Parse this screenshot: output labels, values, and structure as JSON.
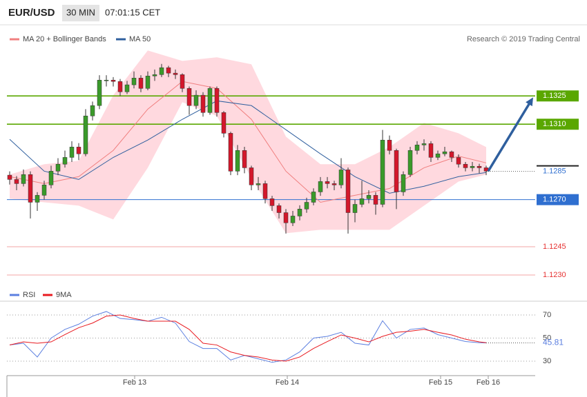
{
  "header": {
    "symbol": "EUR/USD",
    "timeframe": "30 MIN",
    "time": "07:01:15 CET"
  },
  "chart_data": [
    {
      "type": "candlestick",
      "credit": "Research © 2019 Trading Central",
      "up_color": "#3a9a2a",
      "down_color": "#d3172b",
      "xlim": [
        -1.4,
        75.6
      ],
      "ylim": [
        1.1226,
        1.1362
      ],
      "open": [
        1.1283,
        1.12807,
        1.12785,
        1.12833,
        1.12686,
        1.12723,
        1.12778,
        1.12851,
        1.12888,
        1.12924,
        1.12979,
        1.12943,
        1.13144,
        1.13199,
        1.13334,
        1.13334,
        1.13327,
        1.13272,
        1.13309,
        1.13345,
        1.1329,
        1.13356,
        1.13363,
        1.134,
        1.13371,
        1.13363,
        1.1329,
        1.13199,
        1.13254,
        1.13162,
        1.1329,
        1.13162,
        1.13052,
        1.12851,
        1.12961,
        1.12869,
        1.12778,
        1.12785,
        1.12705,
        1.12668,
        1.12631,
        1.12577,
        1.12613,
        1.1265,
        1.12686,
        1.12741,
        1.12796,
        1.12785,
        1.12778,
        1.12858,
        1.12631,
        1.12675,
        1.12705,
        1.12723,
        1.12675,
        1.13016,
        1.12961,
        1.12741,
        1.12833,
        1.12961,
        1.1299,
        1.12997,
        1.12924,
        1.12943,
        1.12954,
        1.12924,
        1.12888,
        1.12869,
        1.12877,
        1.12869
      ],
      "high": [
        1.1285,
        1.12825,
        1.1286,
        1.1285,
        1.1274,
        1.128,
        1.1288,
        1.1292,
        1.1296,
        1.1301,
        1.13,
        1.1318,
        1.1322,
        1.1336,
        1.1336,
        1.1335,
        1.1334,
        1.1333,
        1.1338,
        1.1336,
        1.1338,
        1.1339,
        1.1342,
        1.1341,
        1.1339,
        1.1337,
        1.133,
        1.1328,
        1.1327,
        1.133,
        1.133,
        1.1317,
        1.1306,
        1.1299,
        1.1298,
        1.1288,
        1.1282,
        1.128,
        1.1272,
        1.1268,
        1.1265,
        1.1264,
        1.1267,
        1.1271,
        1.1276,
        1.1282,
        1.1282,
        1.128,
        1.1292,
        1.1287,
        1.127,
        1.128,
        1.1275,
        1.1274,
        1.1307,
        1.1304,
        1.1297,
        1.1285,
        1.1298,
        1.1301,
        1.1302,
        1.1301,
        1.1296,
        1.1298,
        1.1296,
        1.1294,
        1.129,
        1.129,
        1.1289,
        1.1288
      ],
      "low": [
        1.1278,
        1.1275,
        1.1277,
        1.126,
        1.1264,
        1.127,
        1.1276,
        1.1283,
        1.1287,
        1.129,
        1.1291,
        1.1293,
        1.1312,
        1.1318,
        1.133,
        1.133,
        1.1325,
        1.1326,
        1.1329,
        1.1327,
        1.1328,
        1.1333,
        1.1335,
        1.1335,
        1.1334,
        1.1327,
        1.1315,
        1.1318,
        1.1314,
        1.1315,
        1.1314,
        1.1303,
        1.1283,
        1.1283,
        1.1284,
        1.1275,
        1.1275,
        1.1268,
        1.1264,
        1.126,
        1.1252,
        1.1256,
        1.1259,
        1.1263,
        1.1267,
        1.1272,
        1.1276,
        1.1275,
        1.1276,
        1.1252,
        1.1258,
        1.1266,
        1.1268,
        1.1262,
        1.1266,
        1.1294,
        1.1265,
        1.1272,
        1.1282,
        1.1294,
        1.1296,
        1.129,
        1.1291,
        1.1293,
        1.129,
        1.1287,
        1.1285,
        1.1285,
        1.1284,
        1.1283
      ],
      "close": [
        1.12807,
        1.12785,
        1.12833,
        1.12686,
        1.12723,
        1.12778,
        1.12851,
        1.12888,
        1.12924,
        1.12979,
        1.12943,
        1.13144,
        1.13199,
        1.13334,
        1.13334,
        1.13327,
        1.13272,
        1.13309,
        1.13345,
        1.1329,
        1.13356,
        1.13363,
        1.134,
        1.13371,
        1.13363,
        1.1329,
        1.13199,
        1.13254,
        1.13162,
        1.1329,
        1.13162,
        1.13052,
        1.12851,
        1.12961,
        1.12869,
        1.12778,
        1.12785,
        1.12705,
        1.12668,
        1.12631,
        1.12577,
        1.12613,
        1.1265,
        1.12686,
        1.12741,
        1.12796,
        1.12785,
        1.12778,
        1.12858,
        1.12631,
        1.12675,
        1.12705,
        1.12723,
        1.12675,
        1.13016,
        1.12961,
        1.12741,
        1.12833,
        1.12961,
        1.1299,
        1.12997,
        1.12924,
        1.12943,
        1.12954,
        1.12924,
        1.12888,
        1.12869,
        1.12877,
        1.12869,
        1.12851
      ],
      "overlays": [
        {
          "name": "MA 20 + Bollinger Bands",
          "color": "#f07f7f",
          "band_color": "#ffd9df",
          "x": [
            0,
            5,
            10,
            15,
            20,
            25,
            30,
            35,
            40,
            45,
            50,
            55,
            60,
            65,
            69
          ],
          "values": [
            1.12822,
            1.12785,
            1.12822,
            1.12961,
            1.1318,
            1.13327,
            1.1329,
            1.13126,
            1.12851,
            1.12686,
            1.12723,
            1.12759,
            1.12869,
            1.12931,
            1.12895
          ],
          "upper": [
            1.12833,
            1.12888,
            1.12906,
            1.13254,
            1.13491,
            1.13436,
            1.13455,
            1.13418,
            1.13034,
            1.12888,
            1.12888,
            1.12979,
            1.13107,
            1.13052,
            1.12979
          ],
          "lower": [
            1.12705,
            1.12686,
            1.12668,
            1.12595,
            1.12869,
            1.13217,
            1.13144,
            1.12815,
            1.12522,
            1.1254,
            1.1254,
            1.1254,
            1.12668,
            1.12796,
            1.12833
          ]
        },
        {
          "name": "MA 50",
          "color": "#2f5f9e",
          "x": [
            0,
            5,
            10,
            15,
            20,
            25,
            30,
            35,
            40,
            45,
            50,
            55,
            60,
            65,
            69
          ],
          "values": [
            1.1302,
            1.12851,
            1.12807,
            1.12924,
            1.13016,
            1.13126,
            1.13224,
            1.13199,
            1.13071,
            1.12943,
            1.12822,
            1.12734,
            1.12771,
            1.12822,
            1.12844
          ]
        }
      ],
      "levels": [
        {
          "value": 1.1325,
          "label": "1.1325",
          "color": "#5aa700",
          "filled": true
        },
        {
          "value": 1.131,
          "label": "1.1310",
          "color": "#5aa700",
          "filled": true
        },
        {
          "value": 1.1285,
          "label": "1.1285",
          "color": "#2f6fd0",
          "filled": false
        },
        {
          "value": 1.127,
          "label": "1.1270",
          "color": "#2f6fd0",
          "filled": true
        },
        {
          "value": 1.1245,
          "label": "1.1245",
          "color": "#e63030",
          "filled": false
        },
        {
          "value": 1.123,
          "label": "1.1230",
          "color": "#e63030",
          "filled": false
        }
      ]
    },
    {
      "type": "line",
      "xlim": [
        -1.4,
        75.6
      ],
      "ylim": [
        20,
        78
      ],
      "yticks": [
        70,
        50,
        30
      ],
      "grid": true,
      "x": [
        0,
        2,
        4,
        6,
        8,
        10,
        12,
        14,
        16,
        18,
        20,
        22,
        24,
        26,
        28,
        30,
        32,
        34,
        36,
        38,
        40,
        42,
        44,
        46,
        48,
        50,
        52,
        54,
        56,
        58,
        60,
        62,
        64,
        66,
        68,
        69
      ],
      "xticks": [
        {
          "value": 18.1,
          "label": "Feb 13"
        },
        {
          "value": 40.2,
          "label": "Feb 14"
        },
        {
          "value": 62.4,
          "label": "Feb 15"
        },
        {
          "value": 69.3,
          "label": "Feb 16"
        }
      ],
      "series": [
        {
          "name": "RSI",
          "color": "#5b7fe0",
          "values": [
            44,
            45.5,
            33.6,
            50,
            57.5,
            62,
            69,
            73,
            67,
            66,
            64.6,
            68,
            63,
            47,
            41,
            41,
            31,
            35,
            32,
            29,
            31,
            38,
            50,
            51.5,
            55,
            45.5,
            44,
            65,
            50,
            57.5,
            58.7,
            53,
            50,
            47,
            46,
            45.81
          ]
        },
        {
          "name": "9MA",
          "color": "#e8191f",
          "values": [
            44,
            46.7,
            45.5,
            46.7,
            53,
            59,
            63,
            69,
            70,
            67,
            64.6,
            64.6,
            64.6,
            57.5,
            45.5,
            44,
            38,
            35,
            33.6,
            31,
            30,
            33.6,
            41,
            47,
            52.7,
            50,
            46.7,
            51.5,
            55,
            56,
            57.5,
            55,
            52.7,
            49,
            46.7,
            46
          ]
        }
      ]
    }
  ]
}
